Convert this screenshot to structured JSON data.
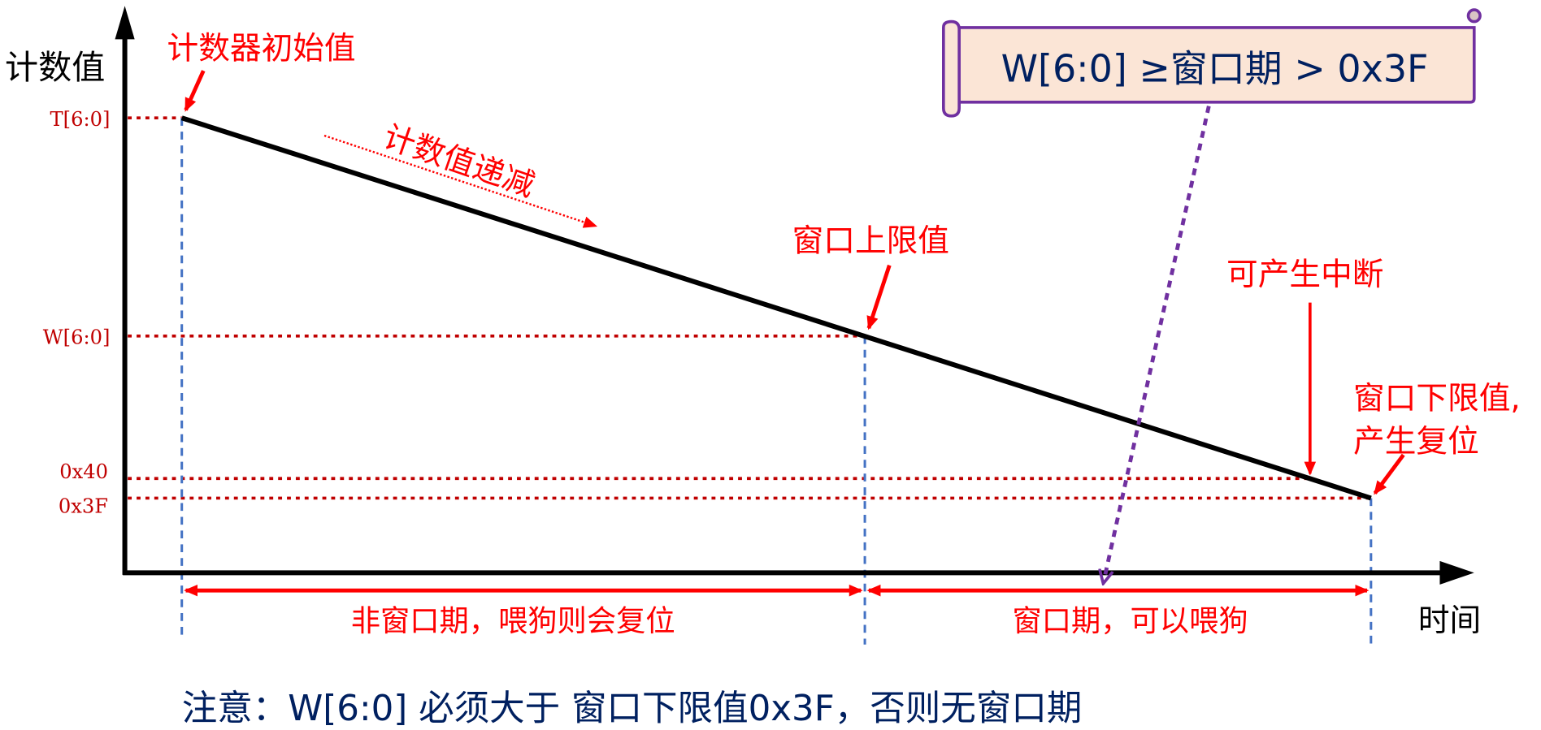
{
  "axes": {
    "y_label": "计数值",
    "x_label": "时间"
  },
  "levels": {
    "t": "T[6:0]",
    "w": "W[6:0]",
    "x40": "0x40",
    "x3f": "0x3F"
  },
  "annotations": {
    "initial": "计数器初始值",
    "decrement": "计数值递减",
    "upper": "窗口上限值",
    "interrupt": "可产生中断",
    "lower_1": "窗口下限值,",
    "lower_2": "产生复位"
  },
  "periods": {
    "non_window": "非窗口期，喂狗则会复位",
    "window": "窗口期，可以喂狗"
  },
  "callout": "W[6:0] ≥窗口期 > 0x3F",
  "note": "注意：W[6:0] 必须大于 窗口下限值0x3F，否则无窗口期",
  "colors": {
    "red": "#ff0000",
    "dark_red": "#c00000",
    "blue": "#4472c4",
    "purple": "#7030a0",
    "navy": "#002060",
    "callout_fill": "#fbe5d6"
  }
}
